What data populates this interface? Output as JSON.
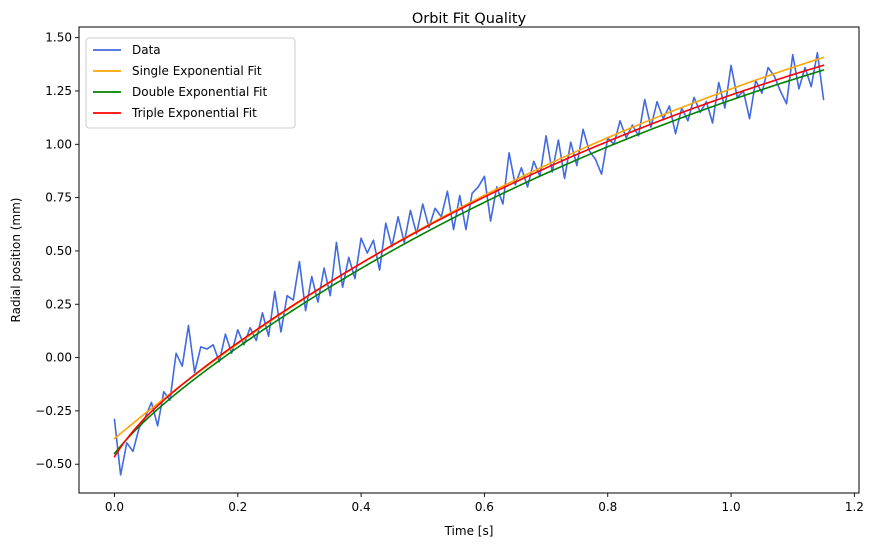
{
  "chart_data": {
    "type": "line",
    "title": "Orbit Fit Quality",
    "xlabel": "Time [s]",
    "ylabel": "Radial position (mm)",
    "xlim": [
      -0.0575,
      1.2075
    ],
    "ylim": [
      -0.635,
      1.55
    ],
    "xticks": [
      0.0,
      0.2,
      0.4,
      0.6,
      0.8,
      1.0,
      1.2
    ],
    "xtick_labels": [
      "0.0",
      "0.2",
      "0.4",
      "0.6",
      "0.8",
      "1.0",
      "1.2"
    ],
    "yticks": [
      -0.5,
      -0.25,
      0.0,
      0.25,
      0.5,
      0.75,
      1.0,
      1.25,
      1.5
    ],
    "ytick_labels": [
      "−0.50",
      "−0.25",
      "0.00",
      "0.25",
      "0.50",
      "0.75",
      "1.00",
      "1.25",
      "1.50"
    ],
    "grid": false,
    "legend_location": "top-left",
    "series": [
      {
        "name": "Data",
        "color": "#4169e1",
        "x": [
          0.0,
          0.01,
          0.02,
          0.03,
          0.04,
          0.05,
          0.06,
          0.07,
          0.08,
          0.09,
          0.1,
          0.11,
          0.12,
          0.13,
          0.14,
          0.15,
          0.16,
          0.17,
          0.18,
          0.19,
          0.2,
          0.21,
          0.22,
          0.23,
          0.24,
          0.25,
          0.26,
          0.27,
          0.28,
          0.29,
          0.3,
          0.31,
          0.32,
          0.33,
          0.34,
          0.35,
          0.36,
          0.37,
          0.38,
          0.39,
          0.4,
          0.41,
          0.42,
          0.43,
          0.44,
          0.45,
          0.46,
          0.47,
          0.48,
          0.49,
          0.5,
          0.51,
          0.52,
          0.53,
          0.54,
          0.55,
          0.56,
          0.57,
          0.58,
          0.59,
          0.6,
          0.61,
          0.62,
          0.63,
          0.64,
          0.65,
          0.66,
          0.67,
          0.68,
          0.69,
          0.7,
          0.71,
          0.72,
          0.73,
          0.74,
          0.75,
          0.76,
          0.77,
          0.78,
          0.79,
          0.8,
          0.81,
          0.82,
          0.83,
          0.84,
          0.85,
          0.86,
          0.87,
          0.88,
          0.89,
          0.9,
          0.91,
          0.92,
          0.93,
          0.94,
          0.95,
          0.96,
          0.97,
          0.98,
          0.99,
          1.0,
          1.01,
          1.02,
          1.03,
          1.04,
          1.05,
          1.06,
          1.07,
          1.08,
          1.09,
          1.1,
          1.11,
          1.12,
          1.13,
          1.14,
          1.15
        ],
        "y": [
          -0.29,
          -0.55,
          -0.4,
          -0.44,
          -0.33,
          -0.28,
          -0.21,
          -0.32,
          -0.16,
          -0.2,
          0.02,
          -0.04,
          0.15,
          -0.07,
          0.05,
          0.04,
          0.06,
          -0.02,
          0.11,
          0.02,
          0.13,
          0.06,
          0.14,
          0.08,
          0.21,
          0.1,
          0.31,
          0.12,
          0.29,
          0.27,
          0.45,
          0.22,
          0.38,
          0.26,
          0.42,
          0.29,
          0.54,
          0.33,
          0.47,
          0.37,
          0.56,
          0.49,
          0.55,
          0.41,
          0.63,
          0.52,
          0.66,
          0.54,
          0.69,
          0.58,
          0.72,
          0.61,
          0.7,
          0.66,
          0.78,
          0.6,
          0.76,
          0.6,
          0.77,
          0.8,
          0.85,
          0.64,
          0.8,
          0.72,
          0.96,
          0.81,
          0.89,
          0.8,
          0.92,
          0.85,
          1.04,
          0.87,
          1.02,
          0.84,
          1.01,
          0.9,
          1.07,
          0.97,
          0.93,
          0.86,
          1.03,
          1.0,
          1.11,
          1.03,
          1.09,
          1.04,
          1.21,
          1.08,
          1.2,
          1.12,
          1.18,
          1.05,
          1.17,
          1.11,
          1.22,
          1.15,
          1.2,
          1.1,
          1.29,
          1.17,
          1.37,
          1.22,
          1.25,
          1.12,
          1.3,
          1.24,
          1.36,
          1.32,
          1.25,
          1.19,
          1.42,
          1.26,
          1.36,
          1.27,
          1.43,
          1.21
        ]
      },
      {
        "name": "Single Exponential Fit",
        "color": "#ffa500",
        "model": {
          "form": "a + b*(1-exp(-t/tau))",
          "a": -0.38,
          "b": 2.9,
          "tau": 1.2
        }
      },
      {
        "name": "Double Exponential Fit",
        "color": "#008000",
        "model": {
          "form": "a + b*(1-exp(-t/tau1)) + c*(1-exp(-t/tau2))",
          "a": -0.45,
          "b": 2.75,
          "tau1": 1.15,
          "c": 0.06,
          "tau2": 0.05
        }
      },
      {
        "name": "Triple Exponential Fit",
        "color": "#ff0000",
        "model": {
          "form": "a + b*(1-exp(-t/tau1)) + c*(1-exp(-t/tau2))",
          "a": -0.465,
          "b": 2.72,
          "tau1": 1.12,
          "c": 0.09,
          "tau2": 0.04
        }
      }
    ]
  }
}
